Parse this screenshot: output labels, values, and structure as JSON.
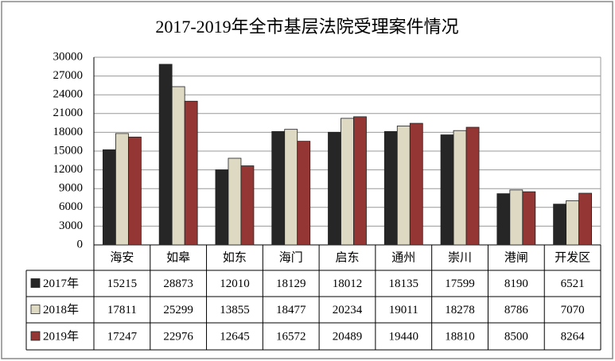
{
  "chart_data": {
    "type": "bar",
    "title": "2017-2019年全市基层法院受理案件情况",
    "categories": [
      "海安",
      "如皋",
      "如东",
      "海门",
      "启东",
      "通州",
      "崇川",
      "港闸",
      "开发区"
    ],
    "series": [
      {
        "name": "2017年",
        "color": "#262626",
        "values": [
          15215,
          28873,
          12010,
          18129,
          18012,
          18135,
          17599,
          8190,
          6521
        ]
      },
      {
        "name": "2018年",
        "color": "#ddd9c3",
        "values": [
          17811,
          25299,
          13855,
          18477,
          20234,
          19011,
          18278,
          8786,
          7070
        ]
      },
      {
        "name": "2019年",
        "color": "#943634",
        "values": [
          17247,
          22976,
          12645,
          16572,
          20489,
          19440,
          18810,
          8500,
          8264
        ]
      }
    ],
    "ylim": [
      0,
      30000
    ],
    "yticks": [
      0,
      3000,
      6000,
      9000,
      12000,
      15000,
      18000,
      21000,
      24000,
      27000,
      30000
    ],
    "grid": true
  }
}
